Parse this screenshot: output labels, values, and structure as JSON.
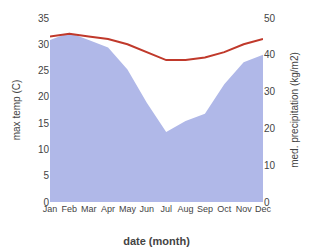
{
  "chart_data": {
    "type": "line",
    "categories": [
      "Jan",
      "Feb",
      "Mar",
      "Apr",
      "May",
      "Jun",
      "Jul",
      "Aug",
      "Sep",
      "Oct",
      "Nov",
      "Dec"
    ],
    "series": [
      {
        "type": "area",
        "color": "#b0b8e8",
        "axis": "y2",
        "values": [
          44,
          46,
          44,
          42,
          36,
          27,
          19,
          22,
          24,
          32,
          38,
          40
        ]
      },
      {
        "type": "line",
        "color": "#c0392b",
        "values": [
          31.5,
          32.0,
          31.5,
          31.0,
          30.0,
          28.5,
          27.0,
          27.0,
          27.5,
          28.5,
          30.0,
          31.0
        ]
      }
    ],
    "xlabel": "date (month)",
    "ylabel": "max temp (C)",
    "y2label": "med. precipitation (kg/m2)",
    "ylim": [
      0,
      35
    ],
    "yticks": [
      0,
      5,
      10,
      15,
      20,
      25,
      30,
      35
    ],
    "y2lim": [
      0,
      50
    ],
    "y2ticks": [
      0,
      10,
      20,
      30,
      40,
      50
    ],
    "grid": false
  }
}
